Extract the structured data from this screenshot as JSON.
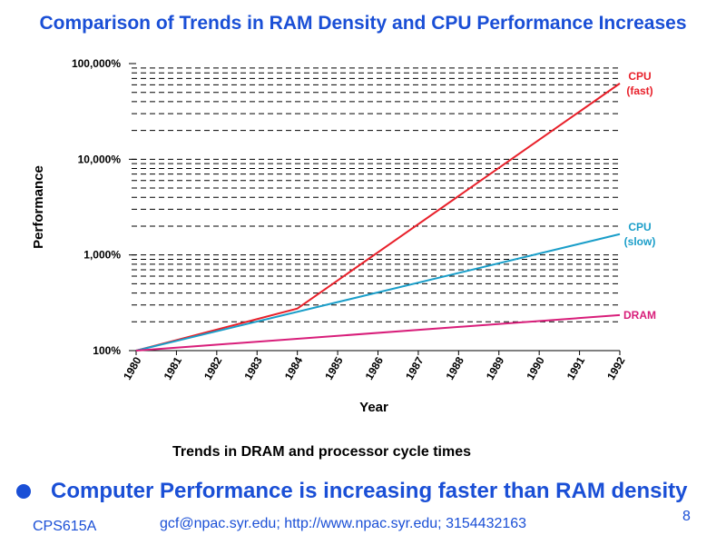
{
  "page": {
    "title": "Comparison of Trends in RAM Density and CPU Performance Increases",
    "caption": "Trends in DRAM and processor cycle times",
    "bullet": "Computer Performance is increasing faster than RAM density",
    "footer_course": "CPS615A",
    "footer_contact": "gcf@npac.syr.edu; http://www.npac.syr.edu; 3154432163",
    "page_number": "8"
  },
  "chart_data": {
    "type": "line",
    "scale_y": "log",
    "xlabel": "Year",
    "ylabel": "Performance",
    "xlim": [
      1980,
      1992
    ],
    "ylim": [
      100,
      100000
    ],
    "x_ticks": [
      "1980",
      "1981",
      "1982",
      "1983",
      "1984",
      "1985",
      "1986",
      "1987",
      "1988",
      "1989",
      "1990",
      "1991",
      "1992"
    ],
    "y_ticks": [
      "100%",
      "1,000%",
      "10,000%",
      "100,000%"
    ],
    "grid": "dashed horizontal minor lines",
    "series": [
      {
        "name": "CPU (fast)",
        "label_lines": [
          "CPU",
          "(fast)"
        ],
        "color": "#e8202a",
        "points": [
          [
            1980,
            100
          ],
          [
            1984,
            275
          ],
          [
            1992,
            62000
          ]
        ]
      },
      {
        "name": "CPU (slow)",
        "label_lines": [
          "CPU",
          "(slow)"
        ],
        "color": "#1a9ec9",
        "points": [
          [
            1980,
            100
          ],
          [
            1992,
            1650
          ]
        ]
      },
      {
        "name": "DRAM",
        "label_lines": [
          "DRAM"
        ],
        "color": "#d81e7a",
        "points": [
          [
            1980,
            100
          ],
          [
            1992,
            235
          ]
        ]
      }
    ]
  }
}
